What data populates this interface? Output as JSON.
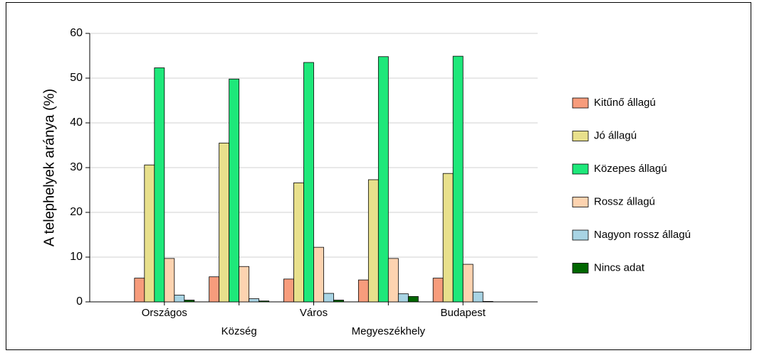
{
  "chart_data": {
    "type": "bar",
    "ylabel": "A telephelyek aránya (%)",
    "categories": [
      "Országos",
      "Község",
      "Város",
      "Megyeszékhely",
      "Budapest"
    ],
    "series": [
      {
        "name": "Kitűnő állagú",
        "color": "#f79c7c",
        "values": [
          5.3,
          5.6,
          5.1,
          4.9,
          5.3
        ]
      },
      {
        "name": "Jó állagú",
        "color": "#e8e08c",
        "values": [
          30.6,
          35.5,
          26.6,
          27.3,
          28.7
        ]
      },
      {
        "name": "Közepes állagú",
        "color": "#1ee87a",
        "values": [
          52.3,
          49.8,
          53.5,
          54.8,
          54.9
        ]
      },
      {
        "name": "Rossz állagú",
        "color": "#fdd3b0",
        "values": [
          9.7,
          7.9,
          12.2,
          9.7,
          8.4
        ]
      },
      {
        "name": "Nagyon rossz állagú",
        "color": "#a8d4e4",
        "values": [
          1.5,
          0.7,
          1.9,
          1.8,
          2.2
        ]
      },
      {
        "name": "Nincs adat",
        "color": "#006600",
        "values": [
          0.4,
          0.2,
          0.4,
          1.2,
          0.1
        ]
      }
    ],
    "ylim": [
      0,
      60
    ],
    "yticks": [
      0,
      10,
      20,
      30,
      40,
      50,
      60
    ],
    "grid": true,
    "legend": "right"
  }
}
